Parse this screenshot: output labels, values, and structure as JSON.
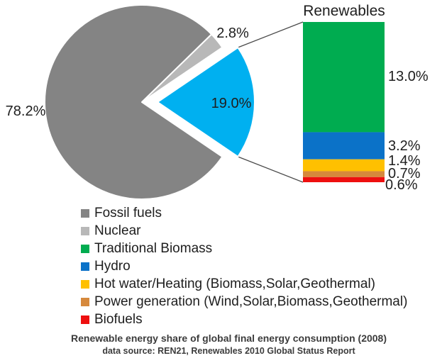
{
  "chart_data": {
    "type": "pie",
    "variant": "bar-of-pie",
    "background": "#ffffff",
    "pie": {
      "slices": [
        {
          "name": "Fossil fuels",
          "value": 78.2,
          "label": "78.2%",
          "color": "#848484",
          "exploded": false
        },
        {
          "name": "Nuclear",
          "value": 2.8,
          "label": "2.8%",
          "color": "#B8B8B8",
          "exploded": false
        },
        {
          "name": "Renewables",
          "value": 19.0,
          "label": "19.0%",
          "color": "#00B0F0",
          "exploded": true
        }
      ]
    },
    "bar": {
      "title": "Renewables",
      "segments": [
        {
          "name": "Traditional Biomass",
          "value": 13.0,
          "label": "13.0%",
          "color": "#00AC50"
        },
        {
          "name": "Hydro",
          "value": 3.2,
          "label": "3.2%",
          "color": "#0B72C8"
        },
        {
          "name": "Hot water/Heating (Biomass,Solar,Geothermal)",
          "value": 1.4,
          "label": "1.4%",
          "color": "#FFC000"
        },
        {
          "name": "Power generation (Wind,Solar,Biomass,Geothermal)",
          "value": 0.7,
          "label": "0.7%",
          "color": "#D6893C"
        },
        {
          "name": "Biofuels",
          "value": 0.6,
          "label": "0.6%",
          "color": "#EE0F0F"
        }
      ]
    },
    "legend": [
      {
        "label": "Fossil fuels",
        "color": "#848484"
      },
      {
        "label": "Nuclear",
        "color": "#B8B8B8"
      },
      {
        "label": "Traditional Biomass",
        "color": "#00AC50"
      },
      {
        "label": "Hydro",
        "color": "#0B72C8"
      },
      {
        "label": "Hot water/Heating (Biomass,Solar,Geothermal)",
        "color": "#FFC000"
      },
      {
        "label": "Power generation (Wind,Solar,Biomass,Geothermal)",
        "color": "#D6893C"
      },
      {
        "label": "Biofuels",
        "color": "#EE0F0F"
      }
    ],
    "connector_color": "#4a4a4a",
    "caption": {
      "line1": "Renewable energy share of global final energy consumption (2008)",
      "line2": "data source: REN21, Renewables 2010 Global Status Report"
    }
  }
}
